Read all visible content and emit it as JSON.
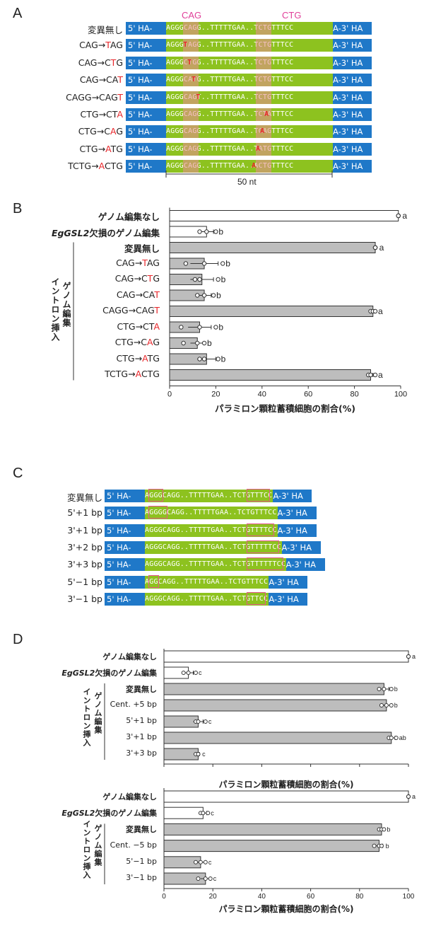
{
  "panels": {
    "A": "A",
    "B": "B",
    "C": "C",
    "D": "D"
  },
  "panel_A": {
    "top_labels": {
      "cag": "CAG",
      "ctg": "CTG"
    },
    "left_arm": "5' HA-",
    "right_arm": "A-3' HA",
    "rows": [
      {
        "label_pre": "変異無し",
        "label_red": "",
        "label_post": "",
        "seq": "AGGGCAGG..TTTTTGAA..TCTGTTTCC"
      },
      {
        "label_pre": "CAG→",
        "label_red": "T",
        "label_post": "AG",
        "seq": "AGGGTAGG..TTTTTGAA..TCTGTTTCC"
      },
      {
        "label_pre": "CAG→C",
        "label_red": "T",
        "label_post": "G",
        "seq": "AGGGCTGG..TTTTTGAA..TCTGTTTCC"
      },
      {
        "label_pre": "CAG→CA",
        "label_red": "T",
        "label_post": "",
        "seq": "AGGGCATG..TTTTTGAA..TCTGTTTCC"
      },
      {
        "label_pre": "CAGG→CAG",
        "label_red": "T",
        "label_post": "",
        "seq": "AGGGCAGT..TTTTTGAA..TCTGTTTCC"
      },
      {
        "label_pre": "CTG→CT",
        "label_red": "A",
        "label_post": "",
        "seq": "AGGGCAGG..TTTTTGAA..TCTATTTCC"
      },
      {
        "label_pre": "CTG→C",
        "label_red": "A",
        "label_post": "G",
        "seq": "AGGGCAGG..TTTTTGAA..TCAGTTTCC"
      },
      {
        "label_pre": "CTG→",
        "label_red": "A",
        "label_post": "TG",
        "seq": "AGGGCAGG..TTTTTGAA..TATGTTTCC"
      },
      {
        "label_pre": "TCTG→",
        "label_red": "A",
        "label_post": "CTG",
        "seq": "AGGGCAGG..TTTTTGAA..ACTGTTTCC"
      }
    ],
    "scale_label": "50 nt"
  },
  "panel_C": {
    "left_arm": "5' HA-",
    "right_arm": "A-3' HA",
    "rows": [
      {
        "label": "変異無し",
        "seq": "AGGGCAGG..TTTTTGAA..TCTGTTTCC"
      },
      {
        "label": "5'+1 bp",
        "seq": "AGGGGCAGG..TTTTTGAA..TCTGTTTCC"
      },
      {
        "label": "3'+1 bp",
        "seq": "AGGGCAGG..TTTTTGAA..TCTGTTTTCC"
      },
      {
        "label": "3'+2 bp",
        "seq": "AGGGCAGG..TTTTTGAA..TCTGTTTTTCC"
      },
      {
        "label": "3'+3 bp",
        "seq": "AGGGCAGG..TTTTTGAA..TCTGTTTTTTCC"
      },
      {
        "label": "5'−1 bp",
        "seq": "AGGCAGG..TTTTTGAA..TCTGTTTCC"
      },
      {
        "label": "3'−1 bp",
        "seq": "AGGGCAGG..TTTTTGAA..TCTGTTCC"
      }
    ]
  },
  "labels": {
    "no_edit": "ゲノム編集なし",
    "gsl2_italic": "EgGSL2",
    "gsl2_rest": "欠損のゲノム編集",
    "intron_line1": "イントロン挿入",
    "intron_line2": "ゲノム編集",
    "xlabel": "パラミロン顆粒蓄積細胞の割合(%)"
  },
  "chart_data": [
    {
      "type": "bar",
      "panel": "B",
      "categories": [
        "ゲノム編集なし",
        "EgGSL2欠損のゲノム編集",
        "変異無し",
        "CAG→TAG",
        "CAG→CTG",
        "CAG→CAT",
        "CAGG→CAGT",
        "CTG→CTA",
        "CTG→CAG",
        "CTG→ATG",
        "TCTG→ACTG"
      ],
      "category_labels": [
        {
          "pre": "ゲノム編集なし",
          "red": "",
          "post": ""
        },
        {
          "pre": "",
          "red": "",
          "post": ""
        },
        {
          "pre": "変異無し",
          "red": "",
          "post": ""
        },
        {
          "pre": "CAG→",
          "red": "T",
          "post": "AG"
        },
        {
          "pre": "CAG→C",
          "red": "T",
          "post": "G"
        },
        {
          "pre": "CAG→CA",
          "red": "T",
          "post": ""
        },
        {
          "pre": "CAGG→CAG",
          "red": "T",
          "post": ""
        },
        {
          "pre": "CTG→CT",
          "red": "A",
          "post": ""
        },
        {
          "pre": "CTG→C",
          "red": "A",
          "post": "G"
        },
        {
          "pre": "CTG→",
          "red": "A",
          "post": "TG"
        },
        {
          "pre": "TCTG→",
          "red": "A",
          "post": "CTG"
        }
      ],
      "values": [
        99,
        16,
        89,
        15,
        14,
        15,
        88,
        13,
        12,
        16,
        87
      ],
      "errors": [
        0.5,
        3,
        0.5,
        6,
        5,
        3,
        0.5,
        5,
        3,
        4,
        1
      ],
      "points": [
        [
          99,
          99,
          99
        ],
        [
          13,
          16,
          20
        ],
        [
          89,
          89,
          89
        ],
        [
          7,
          15,
          23
        ],
        [
          11,
          13,
          21
        ],
        [
          12,
          15,
          19
        ],
        [
          87,
          88,
          89
        ],
        [
          5,
          13,
          20
        ],
        [
          6,
          12,
          15
        ],
        [
          13,
          15,
          21
        ],
        [
          86,
          87,
          89
        ]
      ],
      "letters": [
        "a",
        "b",
        "a",
        "b",
        "b",
        "b",
        "a",
        "b",
        "b",
        "b",
        "a"
      ],
      "fills": [
        "#ffffff",
        "#ffffff",
        "#bdbdbd",
        "#bdbdbd",
        "#bdbdbd",
        "#bdbdbd",
        "#bdbdbd",
        "#bdbdbd",
        "#bdbdbd",
        "#bdbdbd",
        "#bdbdbd"
      ],
      "xlim": [
        0,
        100
      ],
      "xticks": [
        0,
        20,
        40,
        60,
        80,
        100
      ]
    },
    {
      "type": "bar",
      "panel": "D-top",
      "categories": [
        "ゲノム編集なし",
        "EgGSL2欠損のゲノム編集",
        "変異無し",
        "Cent. +5 bp",
        "5'+1 bp",
        "3'+1 bp",
        "3'+3 bp"
      ],
      "values": [
        100,
        10,
        90,
        91,
        14,
        93,
        14
      ],
      "errors": [
        0.3,
        2,
        2,
        2,
        2,
        1.5,
        0.5
      ],
      "points": [
        [
          100,
          100,
          100
        ],
        [
          8,
          10,
          13
        ],
        [
          88,
          90,
          93
        ],
        [
          89,
          91,
          93
        ],
        [
          13,
          14,
          17
        ],
        [
          92,
          93,
          95
        ],
        [
          13,
          14,
          14
        ]
      ],
      "letters": [
        "a",
        "c",
        "b",
        "b",
        "c",
        "ab",
        "c"
      ],
      "fills": [
        "#ffffff",
        "#ffffff",
        "#bdbdbd",
        "#bdbdbd",
        "#bdbdbd",
        "#bdbdbd",
        "#bdbdbd"
      ],
      "xlim": [
        0,
        100
      ],
      "xticks": [
        0,
        20,
        40,
        60,
        80,
        100
      ]
    },
    {
      "type": "bar",
      "panel": "D-bottom",
      "categories": [
        "ゲノム編集なし",
        "EgGSL2欠損のゲノム編集",
        "変異無し",
        "Cent. −5 bp",
        "5'−1 bp",
        "3'−1 bp"
      ],
      "values": [
        100,
        16,
        89,
        88,
        15,
        17
      ],
      "errors": [
        0.3,
        1.5,
        1,
        1.5,
        2,
        2
      ],
      "points": [
        [
          100,
          100,
          100
        ],
        [
          15,
          16,
          18
        ],
        [
          88,
          89,
          90
        ],
        [
          86,
          88,
          89
        ],
        [
          13,
          15,
          17
        ],
        [
          14,
          17,
          19
        ]
      ],
      "letters": [
        "a",
        "c",
        "b",
        "b",
        "c",
        "c"
      ],
      "fills": [
        "#ffffff",
        "#ffffff",
        "#bdbdbd",
        "#bdbdbd",
        "#bdbdbd",
        "#bdbdbd"
      ],
      "xlim": [
        0,
        100
      ],
      "xticks": [
        0,
        20,
        40,
        60,
        80,
        100
      ]
    }
  ]
}
